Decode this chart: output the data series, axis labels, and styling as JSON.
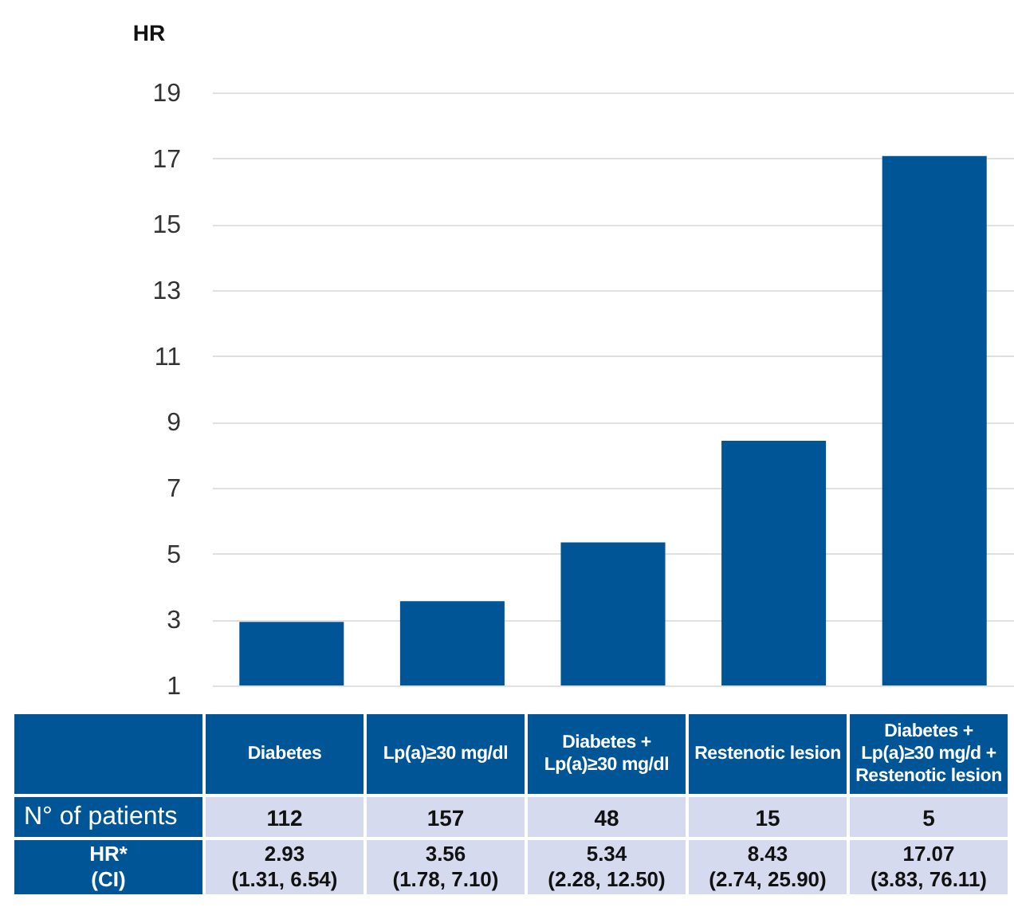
{
  "chart_data": {
    "type": "bar",
    "ylabel": "HR",
    "categories": [
      "Diabetes",
      "Lp(a)≥30 mg/dl",
      "Diabetes + Lp(a)≥30 mg/dl",
      "Restenotic lesion",
      "Diabetes + Lp(a)≥30 mg/d + Restenotic lesion"
    ],
    "values": [
      2.93,
      3.56,
      5.34,
      8.43,
      17.07
    ],
    "value_labels": [
      "2.93\n(1.31, 6.54)",
      "3.56\n(1.78, 7.10)",
      "5.34\n(2.28, 12.50)",
      "8.43\n(2.74, 25.90)",
      "17.07\n(3.83, 76.11)"
    ],
    "color": "#005596",
    "annotations": [
      "N° of patients",
      "112",
      "157",
      "48",
      "15",
      "5",
      "HR*\n(CI)"
    ],
    "ylim": [
      1,
      19
    ],
    "yticks": [
      1,
      3,
      5,
      7,
      9,
      11,
      13,
      15,
      17,
      19
    ],
    "grid": "y"
  }
}
